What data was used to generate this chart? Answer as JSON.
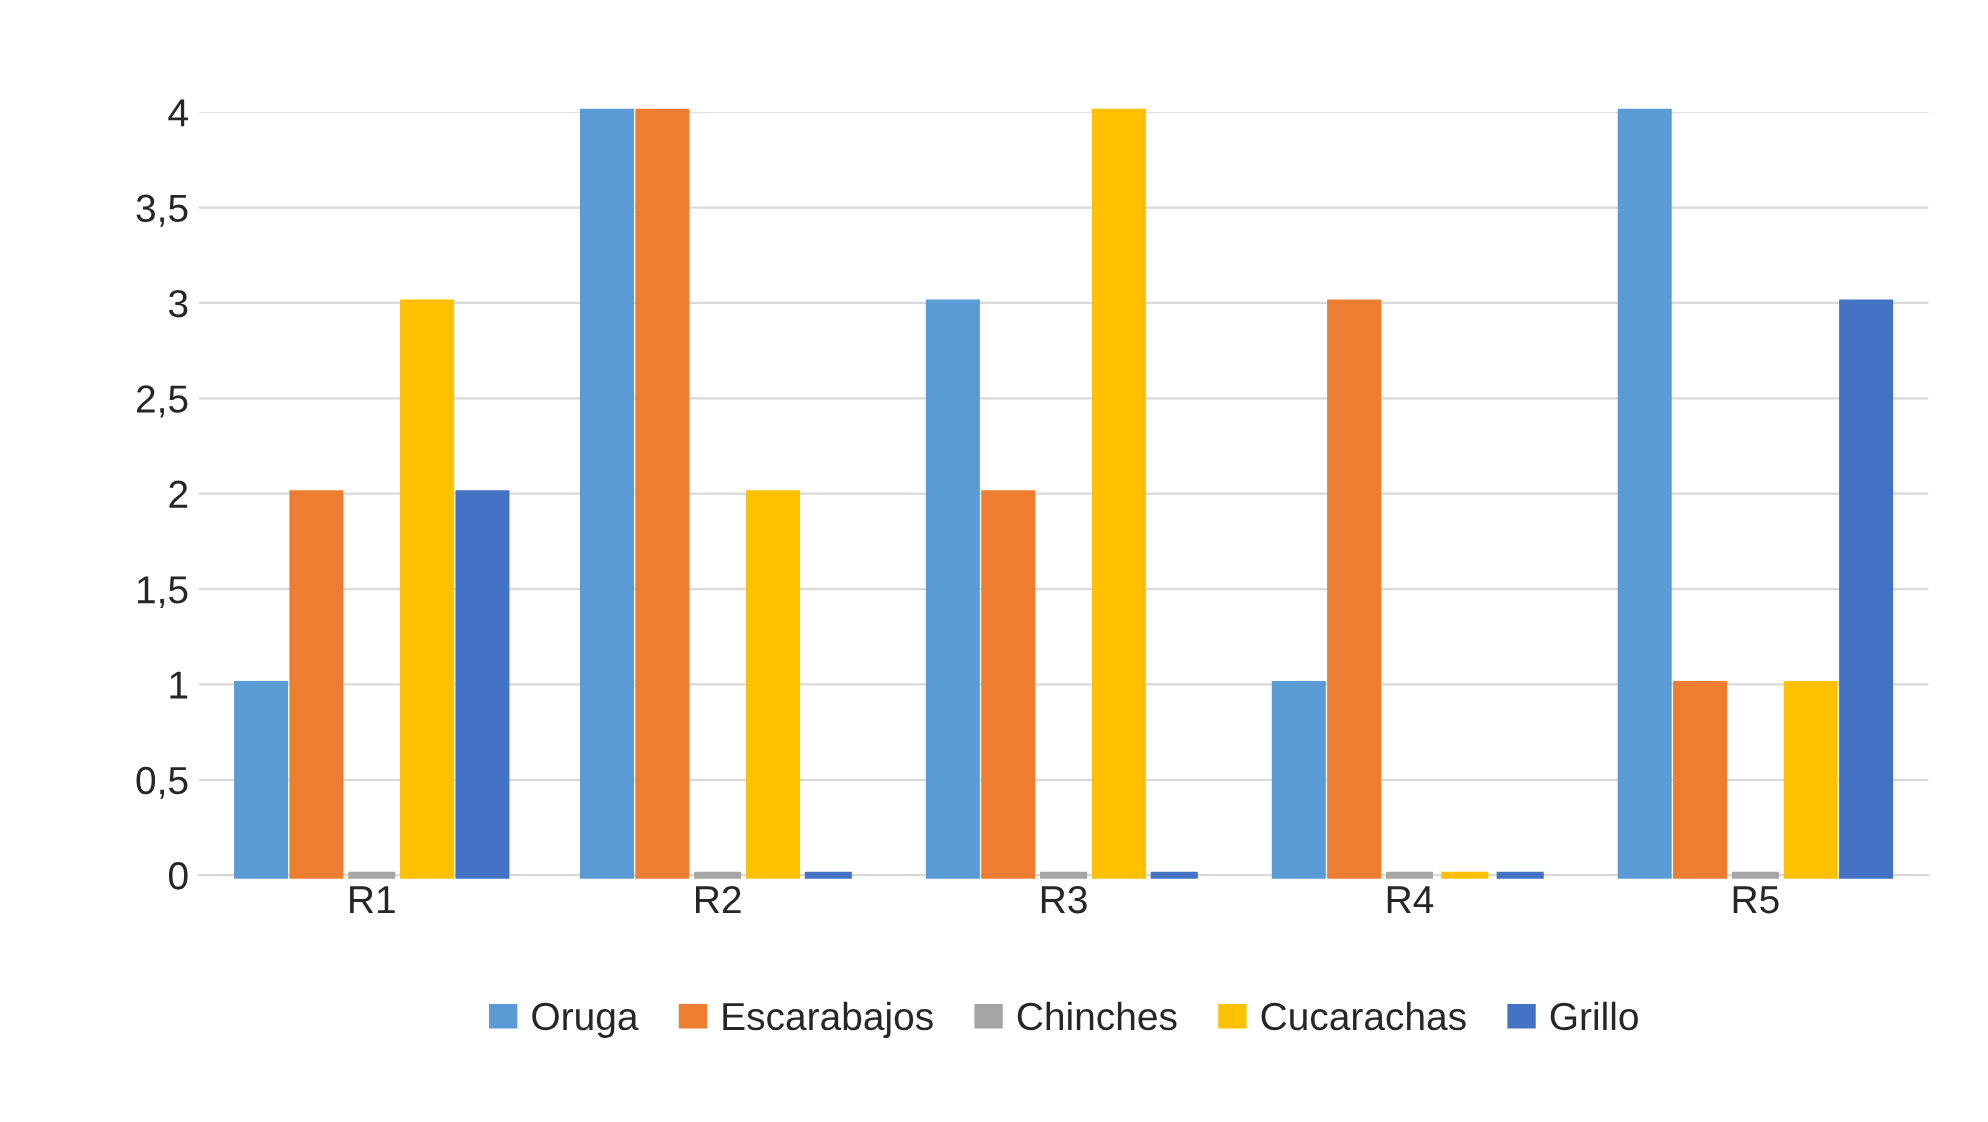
{
  "chart_data": {
    "type": "bar",
    "categories": [
      "R1",
      "R2",
      "R3",
      "R4",
      "R5"
    ],
    "series": [
      {
        "name": "Oruga",
        "color": "#5b9bd5",
        "values": [
          1,
          4,
          3,
          1,
          4
        ]
      },
      {
        "name": "Escarabajos",
        "color": "#ed7d31",
        "values": [
          2,
          4,
          2,
          3,
          1
        ]
      },
      {
        "name": "Chinches",
        "color": "#a5a5a5",
        "values": [
          0,
          0,
          0,
          0,
          0
        ]
      },
      {
        "name": "Cucarachas",
        "color": "#ffc000",
        "values": [
          3,
          2,
          4,
          0,
          1
        ]
      },
      {
        "name": "Grillo",
        "color": "#4472c4",
        "values": [
          2,
          0,
          0,
          0,
          3
        ]
      }
    ],
    "ylim": [
      0,
      4
    ],
    "yticks": [
      0,
      {
        "value": 0.5,
        "label": "0,5"
      },
      1,
      {
        "value": 1.5,
        "label": "1,5"
      },
      2,
      {
        "value": 2.5,
        "label": "2,5"
      },
      3,
      {
        "value": 3.5,
        "label": "3,5"
      },
      4
    ],
    "grid": "y",
    "legend": "bottom"
  }
}
